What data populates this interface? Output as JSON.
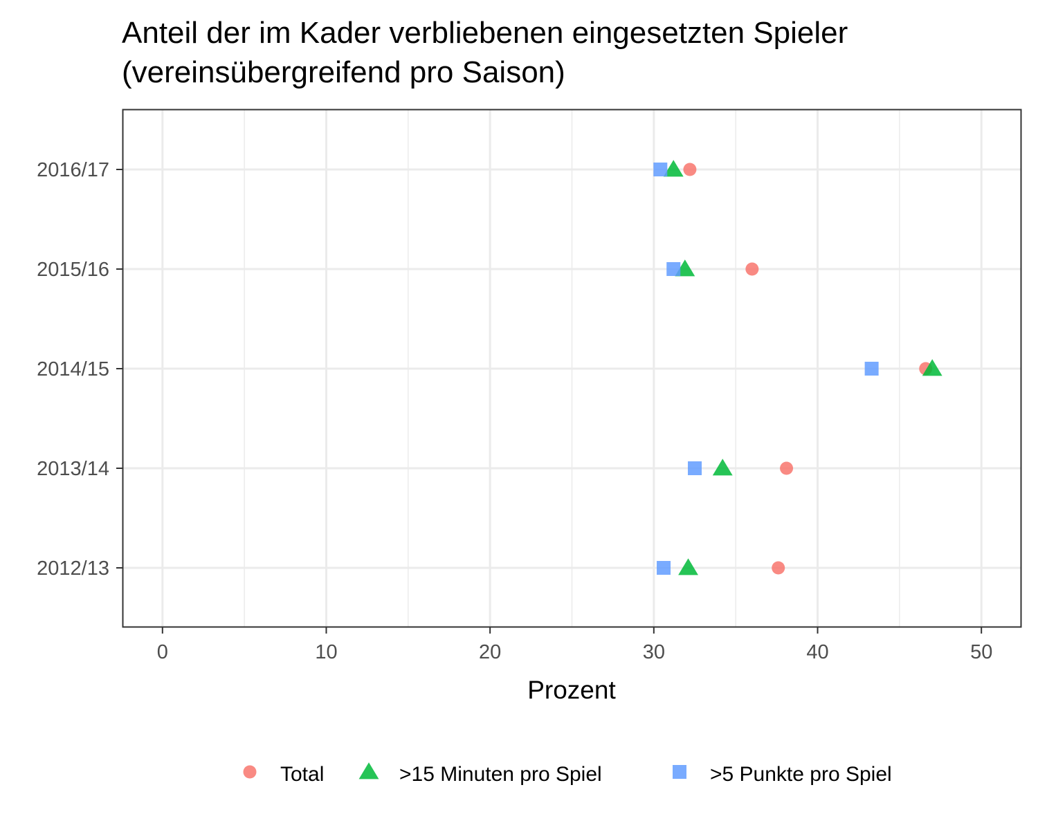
{
  "chart_data": {
    "type": "scatter",
    "title": "Anteil der im Kader verbliebenen eingesetzten Spieler",
    "subtitle": "(vereinsübergreifend pro Saison)",
    "xlabel": "Prozent",
    "ylabel": "",
    "xlim": [
      -2.4,
      52.4
    ],
    "x_ticks": [
      0,
      10,
      20,
      30,
      40,
      50
    ],
    "x_tick_labels": [
      "0",
      "10",
      "20",
      "30",
      "40",
      "50"
    ],
    "categories": [
      "2012/13",
      "2013/14",
      "2014/15",
      "2015/16",
      "2016/17"
    ],
    "grid": true,
    "legend_position": "bottom",
    "series": [
      {
        "name": "Total",
        "shape": "circle",
        "color": "#F8766D",
        "values": [
          37.6,
          38.1,
          46.6,
          36.0,
          32.2
        ]
      },
      {
        "name": ">15 Minuten pro Spiel",
        "shape": "triangle",
        "color": "#00BA38",
        "values": [
          32.1,
          34.2,
          47.0,
          31.9,
          31.2
        ]
      },
      {
        "name": ">5 Punkte pro Spiel",
        "shape": "square",
        "color": "#619CFF",
        "values": [
          30.6,
          32.5,
          43.3,
          31.2,
          30.4
        ]
      }
    ]
  }
}
